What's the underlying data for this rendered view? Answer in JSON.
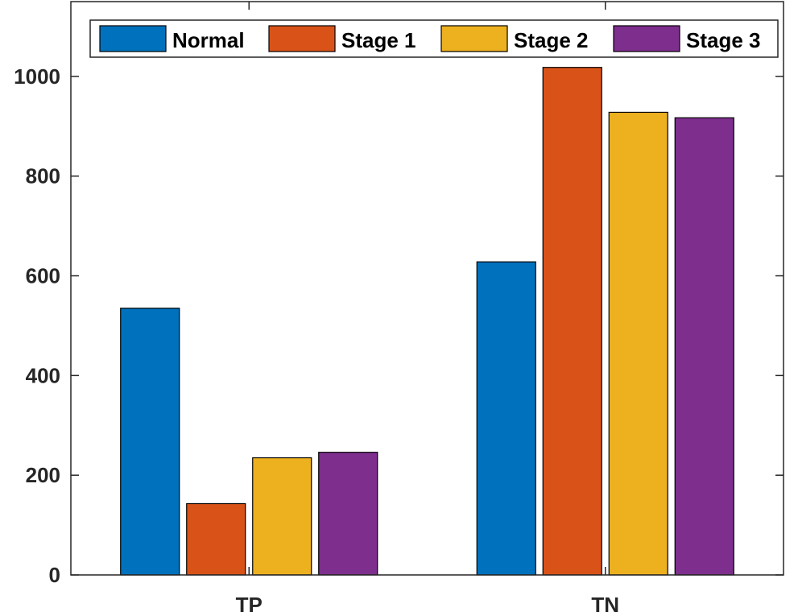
{
  "chart_data": {
    "type": "bar",
    "title": "",
    "xlabel": "",
    "ylabel": "",
    "categories": [
      "TP",
      "TN"
    ],
    "series": [
      {
        "name": "Normal",
        "color": "#0072BD",
        "values": [
          535,
          628
        ]
      },
      {
        "name": "Stage 1",
        "color": "#D95319",
        "values": [
          143,
          1018
        ]
      },
      {
        "name": "Stage 2",
        "color": "#EDB120",
        "values": [
          235,
          928
        ]
      },
      {
        "name": "Stage 3",
        "color": "#7E2F8E",
        "values": [
          246,
          917
        ]
      }
    ],
    "ylim": [
      0,
      1150
    ],
    "yticks": [
      0,
      200,
      400,
      600,
      800,
      1000
    ],
    "grid": false,
    "legend": {
      "placement": "top",
      "orientation": "horizontal"
    }
  }
}
